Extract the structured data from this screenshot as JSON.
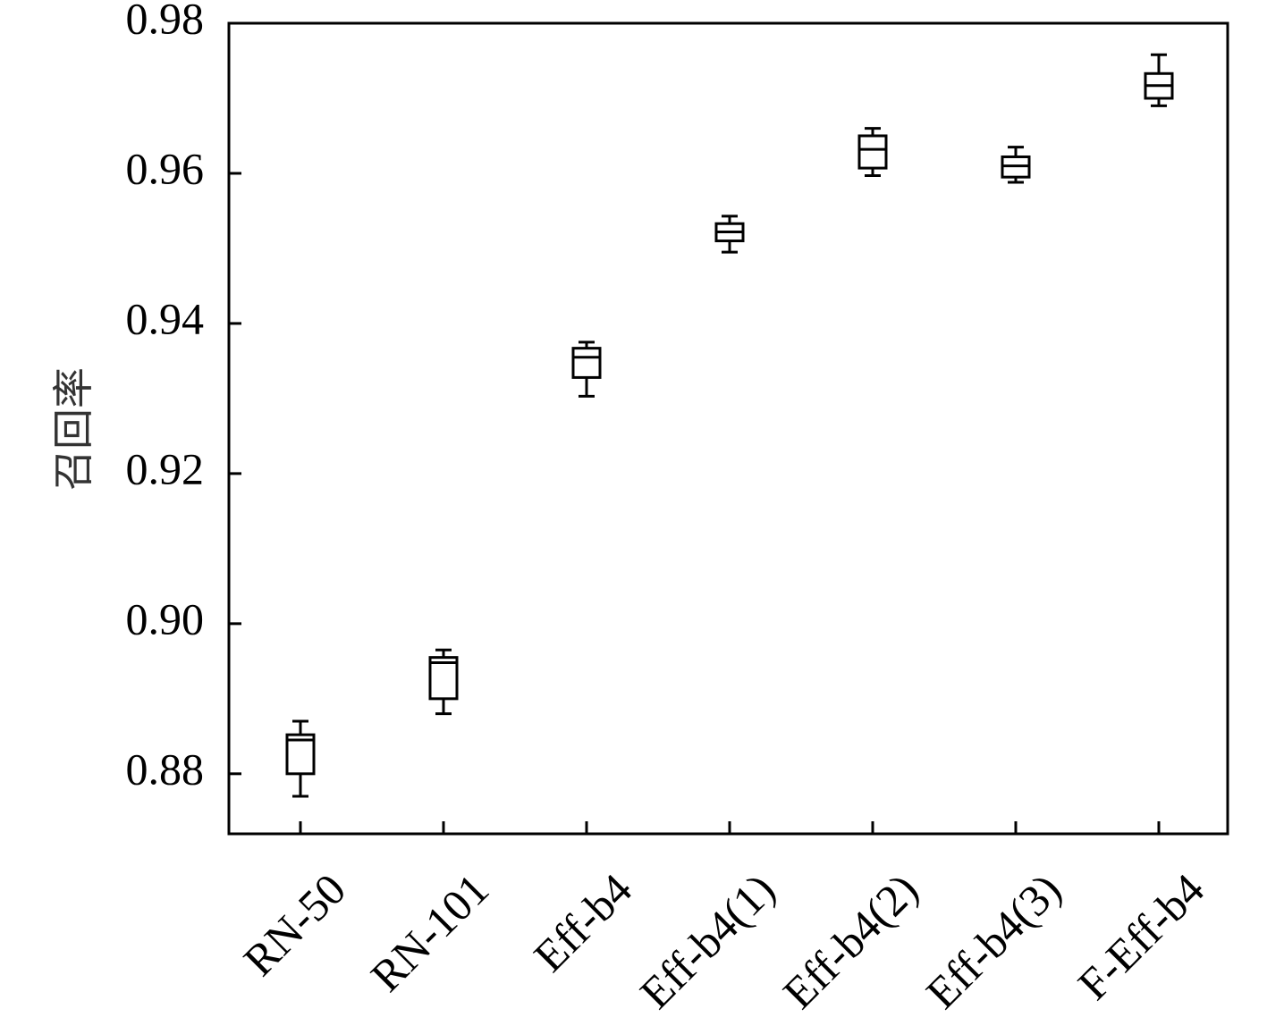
{
  "chart_data": {
    "type": "box",
    "title": "",
    "xlabel": "",
    "ylabel": "召回率",
    "ylim": [
      0.872,
      0.98
    ],
    "yticks": [
      "0.88",
      "0.90",
      "0.92",
      "0.94",
      "0.96",
      "0.98"
    ],
    "grid": false,
    "categories": [
      "RN-50",
      "RN-101",
      "Eff-b4",
      "Eff-b4(1)",
      "Eff-b4(2)",
      "Eff-b4(3)",
      "F-Eff-b4"
    ],
    "boxes": [
      {
        "category": "RN-50",
        "whisker_low": 0.877,
        "q1": 0.88,
        "median": 0.8845,
        "q3": 0.8852,
        "whisker_high": 0.887
      },
      {
        "category": "RN-101",
        "whisker_low": 0.888,
        "q1": 0.89,
        "median": 0.8948,
        "q3": 0.8955,
        "whisker_high": 0.8965
      },
      {
        "category": "Eff-b4",
        "whisker_low": 0.9303,
        "q1": 0.9328,
        "median": 0.9355,
        "q3": 0.9367,
        "whisker_high": 0.9375
      },
      {
        "category": "Eff-b4(1)",
        "whisker_low": 0.9495,
        "q1": 0.951,
        "median": 0.9522,
        "q3": 0.9533,
        "whisker_high": 0.9543
      },
      {
        "category": "Eff-b4(2)",
        "whisker_low": 0.9597,
        "q1": 0.9607,
        "median": 0.9632,
        "q3": 0.965,
        "whisker_high": 0.966
      },
      {
        "category": "Eff-b4(3)",
        "whisker_low": 0.9588,
        "q1": 0.9595,
        "median": 0.961,
        "q3": 0.9622,
        "whisker_high": 0.9635
      },
      {
        "category": "F-Eff-b4",
        "whisker_low": 0.969,
        "q1": 0.97,
        "median": 0.9717,
        "q3": 0.9733,
        "whisker_high": 0.9758
      }
    ]
  }
}
